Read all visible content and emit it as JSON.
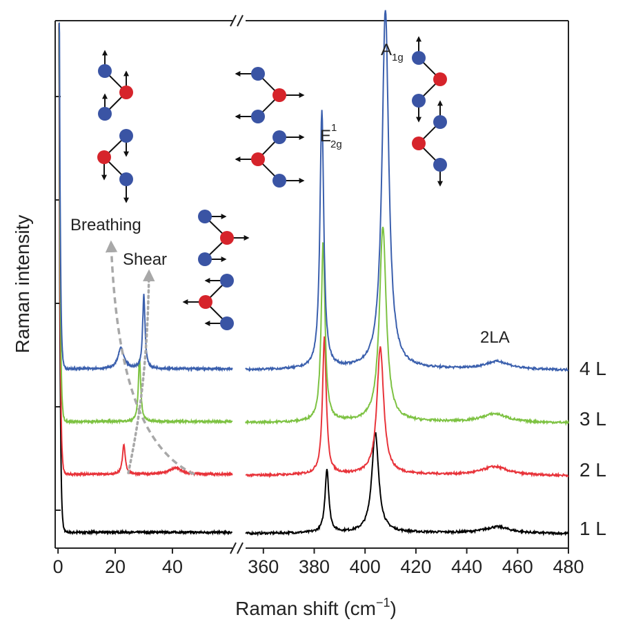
{
  "chart_data": {
    "type": "line",
    "title": "",
    "xlabel": "Raman shift (cm",
    "xlabel_superscript": "−1",
    "xlabel_suffix": ")",
    "ylabel": "Raman intensity",
    "broken_axis": true,
    "segments": [
      {
        "name": "low-frequency",
        "xlim": [
          -1,
          61
        ],
        "ticks": [
          0,
          20,
          40
        ],
        "tick_labels": [
          "0",
          "20",
          "40"
        ]
      },
      {
        "name": "high-frequency",
        "xlim": [
          353,
          480
        ],
        "ticks": [
          360,
          380,
          400,
          420,
          440,
          460,
          480
        ],
        "tick_labels": [
          "360",
          "380",
          "400",
          "420",
          "440",
          "460",
          "480"
        ]
      }
    ],
    "ylim": [
      0,
      100
    ],
    "series": [
      {
        "name": "1 L",
        "color": "#000000",
        "baseline": 3,
        "low_peaks": [],
        "high_peaks": [
          {
            "x": 385,
            "h": 12,
            "w": 0.9
          },
          {
            "x": 404,
            "h": 19,
            "w": 1.6
          },
          {
            "x": 452,
            "h": 1.2,
            "w": 6
          }
        ]
      },
      {
        "name": "2 L",
        "color": "#e8333a",
        "baseline": 14,
        "low_peaks": [
          {
            "x": 23,
            "h": 5.5,
            "w": 0.6
          },
          {
            "x": 41,
            "h": 1.2,
            "w": 2.5
          }
        ],
        "high_peaks": [
          {
            "x": 384,
            "h": 26,
            "w": 0.9
          },
          {
            "x": 406,
            "h": 24,
            "w": 1.6
          },
          {
            "x": 451,
            "h": 1.6,
            "w": 6
          }
        ]
      },
      {
        "name": "3 L",
        "color": "#7dc242",
        "baseline": 24,
        "low_peaks": [
          {
            "x": 28.5,
            "h": 12,
            "w": 0.5
          }
        ],
        "high_peaks": [
          {
            "x": 383.5,
            "h": 34,
            "w": 0.9
          },
          {
            "x": 407,
            "h": 37,
            "w": 1.6
          },
          {
            "x": 451,
            "h": 1.6,
            "w": 6
          }
        ]
      },
      {
        "name": "4 L",
        "color": "#3a5fad",
        "baseline": 34,
        "low_peaks": [
          {
            "x": 22,
            "h": 4,
            "w": 1.2
          },
          {
            "x": 30,
            "h": 14,
            "w": 0.5
          }
        ],
        "high_peaks": [
          {
            "x": 383,
            "h": 49,
            "w": 0.9
          },
          {
            "x": 408,
            "h": 68,
            "w": 1.6
          },
          {
            "x": 452,
            "h": 1.5,
            "w": 6
          }
        ]
      }
    ],
    "layer_labels": [
      "1 L",
      "2 L",
      "3 L",
      "4 L"
    ],
    "annotations": [
      {
        "text": "Breathing",
        "kind": "mode"
      },
      {
        "text": "Shear",
        "kind": "mode"
      },
      {
        "text": "2LA",
        "kind": "peak"
      },
      {
        "text": "E",
        "sup": "1",
        "sub": "2g",
        "kind": "peak"
      },
      {
        "text": "A",
        "sub": "1g",
        "kind": "peak"
      }
    ],
    "trend_arrows": [
      {
        "name": "breathing-trend",
        "from_x": 46,
        "to_x": 18,
        "style": "dashed"
      },
      {
        "name": "shear-trend",
        "from_x": 23,
        "to_x": 30,
        "style": "dotted"
      }
    ],
    "colors": {
      "atom_metal": "#3a54a4",
      "atom_chalcogen": "#d6242b",
      "trend": "#a8a8a8",
      "axis": "#222222"
    }
  }
}
